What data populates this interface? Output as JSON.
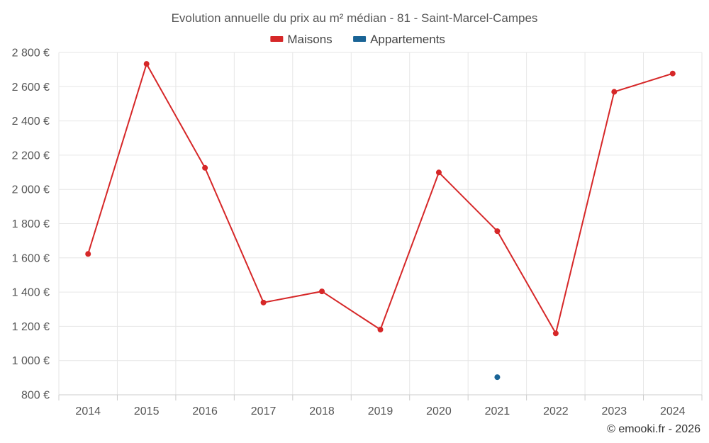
{
  "chart_data": {
    "type": "line",
    "title": "Evolution annuelle du prix au m² médian - 81 - Saint-Marcel-Campes",
    "x": [
      "2014",
      "2015",
      "2016",
      "2017",
      "2018",
      "2019",
      "2020",
      "2021",
      "2022",
      "2023",
      "2024"
    ],
    "series": [
      {
        "name": "Maisons",
        "color": "#d62728",
        "values": [
          1623,
          2733,
          2126,
          1339,
          1404,
          1181,
          2099,
          1756,
          1159,
          2570,
          2677
        ]
      },
      {
        "name": "Appartements",
        "color": "#1a6496",
        "values": [
          null,
          null,
          null,
          null,
          null,
          null,
          null,
          903,
          null,
          null,
          null
        ]
      }
    ],
    "ylim": [
      800,
      2800
    ],
    "yticks": [
      800,
      1000,
      1200,
      1400,
      1600,
      1800,
      2000,
      2200,
      2400,
      2600,
      2800
    ],
    "ytick_labels": [
      "800 €",
      "1 000 €",
      "1 200 €",
      "1 400 €",
      "1 600 €",
      "1 800 €",
      "2 000 €",
      "2 200 €",
      "2 400 €",
      "2 600 €",
      "2 800 €"
    ],
    "grid": true,
    "legend_position": "top-center",
    "credit": "© emooki.fr - 2026"
  }
}
